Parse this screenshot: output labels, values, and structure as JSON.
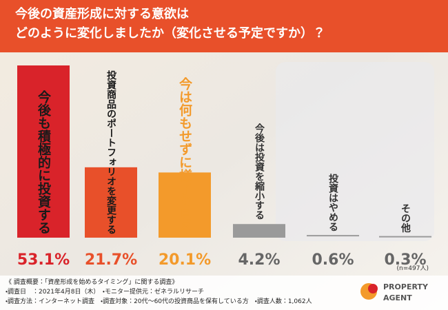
{
  "chart_data": {
    "type": "bar",
    "title_lines": [
      "今後の資産形成に対する意欲は",
      "どのように変化しましたか（変化させる予定ですか）？"
    ],
    "categories": [
      "今後も積極的に投資する",
      "投資商品のポートフォリオを変更する",
      "今は何もせずに様子を見る",
      "今後は投資を縮小する",
      "投資はやめる",
      "その他"
    ],
    "values": [
      53.1,
      21.7,
      20.1,
      4.2,
      0.6,
      0.3
    ],
    "value_labels": [
      "53.1%",
      "21.7%",
      "20.1%",
      "4.2%",
      "0.6%",
      "0.3%"
    ],
    "colors": [
      "#d9232a",
      "#e8502a",
      "#f39a2b",
      "#9a9a9a",
      "#9a9a9a",
      "#9a9a9a"
    ],
    "label_colors": [
      "#1a1a1a",
      "#1a1a1a",
      "#f39a2b",
      "#333333",
      "#333333",
      "#333333"
    ],
    "note": "(n=497人)",
    "footer": [
      "《 調査概要：「資産形成を始めるタイミング」に関する調査》",
      "・調査日　：2021年4月8日（木）　・モニター提供元：ゼネラルリサーチ",
      "・調査方法：インターネット調査　・調査対象：20代～60代の投資商品を保有している方　・調査人数：1,062人"
    ],
    "logo": [
      "PROPERTY",
      "AGENT"
    ]
  }
}
